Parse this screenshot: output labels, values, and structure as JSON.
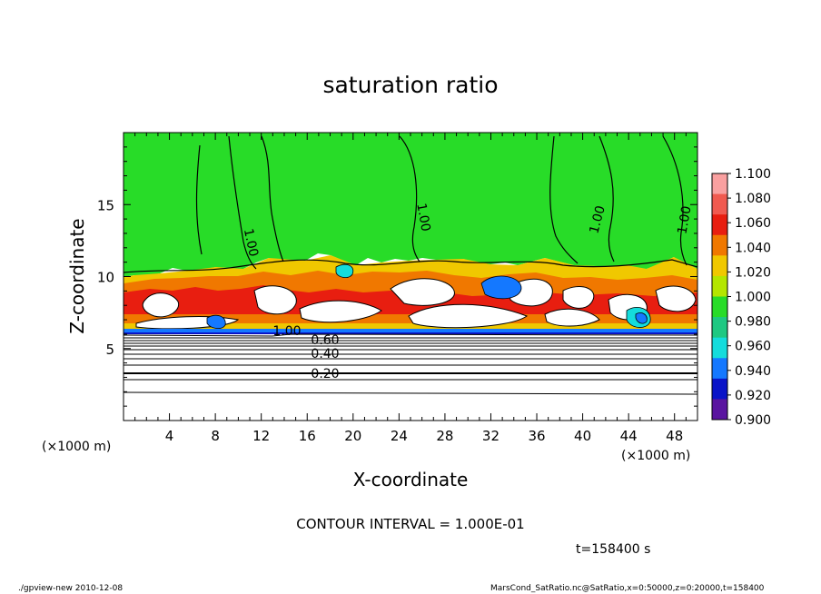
{
  "chart_data": {
    "type": "heatmap",
    "title": "saturation ratio",
    "xlabel": "X-coordinate",
    "ylabel": "Z-coordinate",
    "x_unit": "(×1000 m)",
    "y_unit": "(×1000 m)",
    "xlim": [
      0,
      50
    ],
    "ylim": [
      0,
      20
    ],
    "x_ticks": [
      "4",
      "8",
      "12",
      "16",
      "20",
      "24",
      "28",
      "32",
      "36",
      "40",
      "44",
      "48"
    ],
    "y_ticks": [
      "5",
      "10",
      "15"
    ],
    "x_tick_values": [
      4,
      8,
      12,
      16,
      20,
      24,
      28,
      32,
      36,
      40,
      44,
      48
    ],
    "y_tick_values": [
      5,
      10,
      15
    ],
    "colorbar": {
      "levels": [
        "1.100",
        "1.080",
        "1.060",
        "1.040",
        "1.020",
        "1.000",
        "0.980",
        "0.960",
        "0.940",
        "0.920",
        "0.900"
      ],
      "colors": [
        "#f9a0a0",
        "#f05a50",
        "#e81e10",
        "#f07800",
        "#f0c800",
        "#b4e600",
        "#28dc28",
        "#1ec882",
        "#14dcdc",
        "#1478ff",
        "#0a14c8",
        "#5a14a0"
      ]
    },
    "contour_labels": [
      {
        "text": "1.00"
      },
      {
        "text": "1.00"
      },
      {
        "text": "1.00"
      },
      {
        "text": "1.00"
      },
      {
        "text": "1.00"
      },
      {
        "text": "0.60"
      },
      {
        "text": "0.40"
      },
      {
        "text": "0.20"
      }
    ],
    "contour_interval": "CONTOUR INTERVAL = 1.000E-01",
    "time": "t=158400 s",
    "footer_left": "./gpview-new   2010-12-08",
    "footer_right": "MarsCond_SatRatio.nc@SatRatio,x=0:50000,z=0:20000,t=158400"
  }
}
